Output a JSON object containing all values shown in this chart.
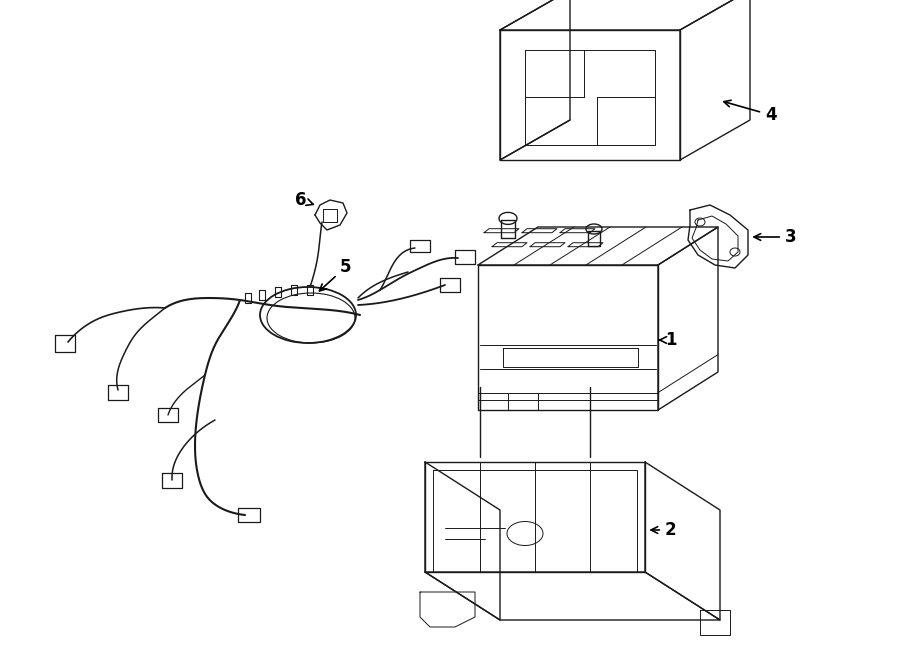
{
  "background_color": "#ffffff",
  "line_color": "#1a1a1a",
  "text_color": "#000000",
  "fig_width": 9.0,
  "fig_height": 6.61,
  "dpi": 100,
  "lw_main": 1.0,
  "lw_detail": 0.7
}
